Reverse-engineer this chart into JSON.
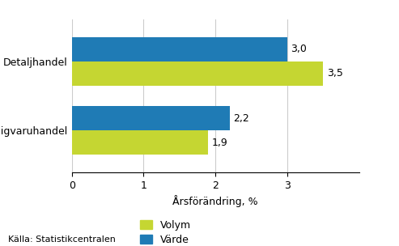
{
  "categories": [
    "Dagligvaruhandel",
    "Detaljhandel"
  ],
  "volym_values": [
    1.9,
    3.5
  ],
  "varde_values": [
    2.2,
    3.0
  ],
  "volym_color": "#c5d632",
  "varde_color": "#1f7bb5",
  "xlabel": "Årsförändring, %",
  "xlim": [
    0,
    4.0
  ],
  "xticks": [
    0,
    1,
    2,
    3
  ],
  "bar_height": 0.35,
  "source_text": "Källa: Statistikcentralen",
  "legend_labels": [
    "Volym",
    "Värde"
  ],
  "value_labels_volym": [
    "1,9",
    "3,5"
  ],
  "value_labels_varde": [
    "2,2",
    "3,0"
  ],
  "background_color": "#ffffff",
  "grid_color": "#cccccc",
  "label_fontsize": 9,
  "tick_fontsize": 9,
  "source_fontsize": 8
}
